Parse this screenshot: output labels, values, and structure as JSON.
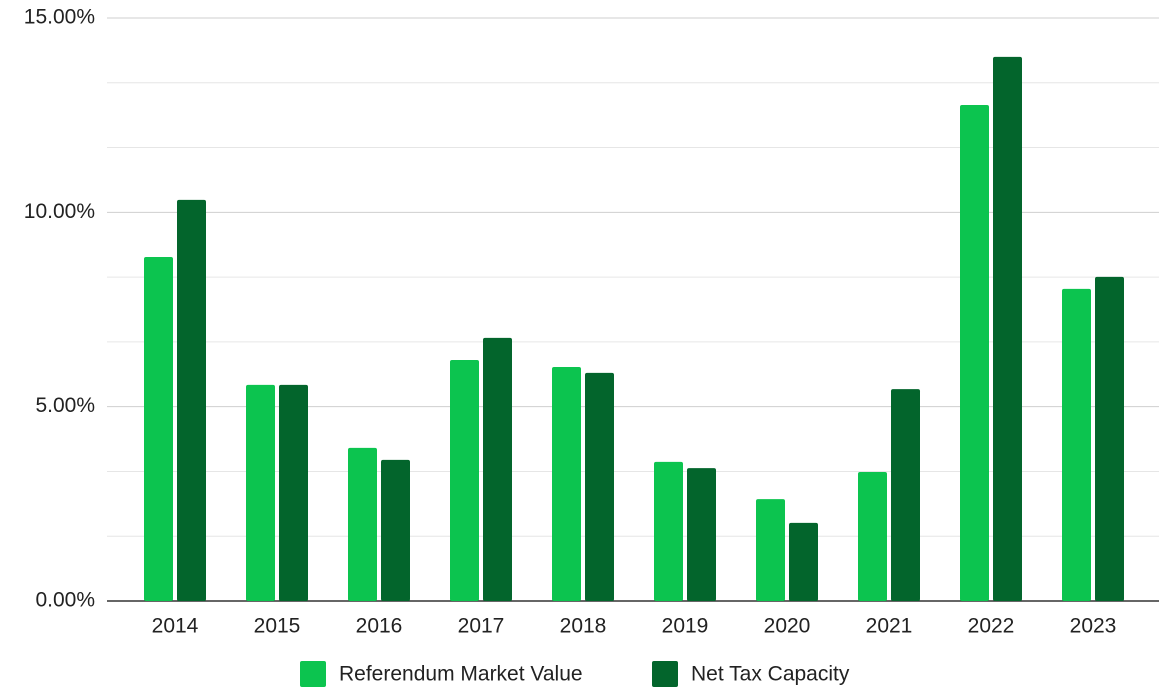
{
  "chart_data": {
    "type": "bar",
    "categories": [
      "2014",
      "2015",
      "2016",
      "2017",
      "2018",
      "2019",
      "2020",
      "2021",
      "2022",
      "2023"
    ],
    "series": [
      {
        "name": "Referendum Market Value",
        "color": "#0cc44f",
        "values": [
          8.85,
          5.56,
          3.94,
          6.2,
          6.02,
          3.58,
          2.62,
          3.32,
          12.76,
          8.03
        ]
      },
      {
        "name": "Net Tax Capacity",
        "color": "#03652c",
        "values": [
          10.32,
          5.56,
          3.63,
          6.77,
          5.87,
          3.42,
          2.01,
          5.45,
          14.0,
          8.34
        ]
      }
    ],
    "ylim": [
      0,
      15
    ],
    "yticks": [
      {
        "value": 0,
        "label": "0.00%"
      },
      {
        "value": 5,
        "label": "5.00%"
      },
      {
        "value": 10,
        "label": "10.00%"
      },
      {
        "value": 15,
        "label": "15.00%"
      }
    ],
    "grid": true,
    "minor_grid_divisions": 3,
    "legend": "bottom"
  }
}
